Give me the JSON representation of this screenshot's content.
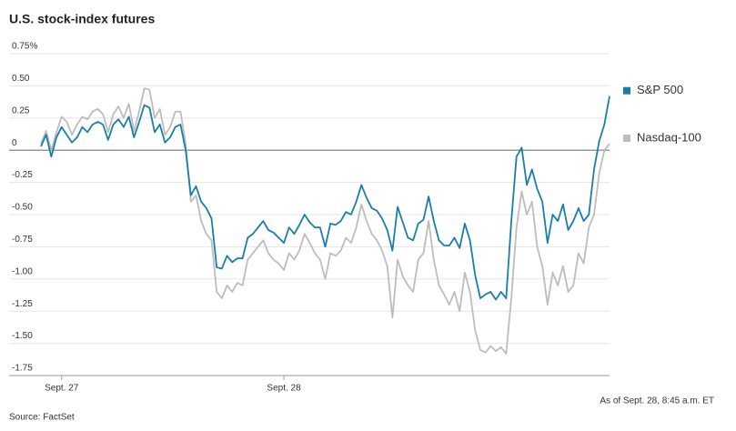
{
  "chart_data": {
    "type": "line",
    "title": "U.S. stock-index futures",
    "note": "As of Sept. 28, 8:45 a.m. ET",
    "source": "Source: FactSet",
    "ylim": [
      -1.75,
      0.75
    ],
    "yticks": [
      {
        "value": 0.75,
        "label": "0.75%"
      },
      {
        "value": 0.5,
        "label": "0.50"
      },
      0.25,
      0,
      -0.25,
      {
        "value": -0.5,
        "label": "-0.50"
      },
      -0.75,
      {
        "value": -1,
        "label": "-1.00"
      },
      -1.25,
      {
        "value": -1.5,
        "label": "-1.50"
      },
      -1.75
    ],
    "xlim": [
      0,
      110
    ],
    "xticks": [
      {
        "value": 4,
        "label": "Sept. 27"
      },
      {
        "value": 47,
        "label": "Sept. 28"
      }
    ],
    "grid": true,
    "series": [
      {
        "name": "S&P 500",
        "color": "#1a7fa8",
        "values": [
          0.03,
          0.12,
          -0.05,
          0.1,
          0.18,
          0.12,
          0.06,
          0.1,
          0.18,
          0.14,
          0.2,
          0.22,
          0.2,
          0.08,
          0.2,
          0.24,
          0.18,
          0.26,
          0.1,
          0.22,
          0.35,
          0.33,
          0.14,
          0.2,
          0.06,
          0.1,
          0.18,
          0.2,
          0.0,
          -0.35,
          -0.28,
          -0.4,
          -0.45,
          -0.53,
          -0.91,
          -0.92,
          -0.82,
          -0.87,
          -0.84,
          -0.84,
          -0.68,
          -0.65,
          -0.6,
          -0.55,
          -0.62,
          -0.64,
          -0.68,
          -0.72,
          -0.6,
          -0.65,
          -0.58,
          -0.5,
          -0.56,
          -0.6,
          -0.6,
          -0.75,
          -0.57,
          -0.58,
          -0.55,
          -0.48,
          -0.5,
          -0.4,
          -0.27,
          -0.37,
          -0.45,
          -0.47,
          -0.53,
          -0.62,
          -0.78,
          -0.44,
          -0.56,
          -0.68,
          -0.7,
          -0.57,
          -0.54,
          -0.36,
          -0.55,
          -0.7,
          -0.74,
          -0.74,
          -0.68,
          -0.76,
          -0.57,
          -0.7,
          -0.97,
          -1.15,
          -1.12,
          -1.1,
          -1.16,
          -1.1,
          -1.15,
          -0.55,
          -0.05,
          0.02,
          -0.27,
          -0.15,
          -0.3,
          -0.4,
          -0.72,
          -0.5,
          -0.55,
          -0.42,
          -0.62,
          -0.55,
          -0.45,
          -0.55,
          -0.5,
          -0.15,
          0.07,
          0.2,
          0.42
        ]
      },
      {
        "name": "Nasdaq-100",
        "color": "#bdbdbd",
        "values": [
          0.05,
          0.15,
          0.0,
          0.14,
          0.26,
          0.22,
          0.12,
          0.2,
          0.26,
          0.24,
          0.3,
          0.32,
          0.28,
          0.14,
          0.28,
          0.34,
          0.25,
          0.36,
          0.15,
          0.3,
          0.48,
          0.47,
          0.25,
          0.32,
          0.12,
          0.18,
          0.3,
          0.3,
          0.05,
          -0.4,
          -0.35,
          -0.55,
          -0.65,
          -0.7,
          -1.1,
          -1.15,
          -1.05,
          -1.1,
          -1.03,
          -1.05,
          -0.85,
          -0.8,
          -0.75,
          -0.7,
          -0.8,
          -0.85,
          -0.88,
          -0.93,
          -0.8,
          -0.85,
          -0.78,
          -0.65,
          -0.72,
          -0.8,
          -0.85,
          -1.0,
          -0.8,
          -0.82,
          -0.78,
          -0.68,
          -0.72,
          -0.6,
          -0.42,
          -0.55,
          -0.65,
          -0.7,
          -0.78,
          -0.9,
          -1.3,
          -0.85,
          -0.98,
          -1.05,
          -1.1,
          -0.85,
          -0.8,
          -0.55,
          -0.85,
          -1.05,
          -1.12,
          -1.2,
          -1.1,
          -1.25,
          -0.95,
          -1.1,
          -1.4,
          -1.55,
          -1.57,
          -1.52,
          -1.56,
          -1.53,
          -1.58,
          -1.15,
          -0.6,
          -0.32,
          -0.5,
          -0.4,
          -0.75,
          -0.9,
          -1.2,
          -0.95,
          -1.05,
          -0.9,
          -1.1,
          -1.05,
          -0.8,
          -0.88,
          -0.6,
          -0.5,
          -0.18,
          0.0,
          0.05
        ]
      }
    ]
  }
}
